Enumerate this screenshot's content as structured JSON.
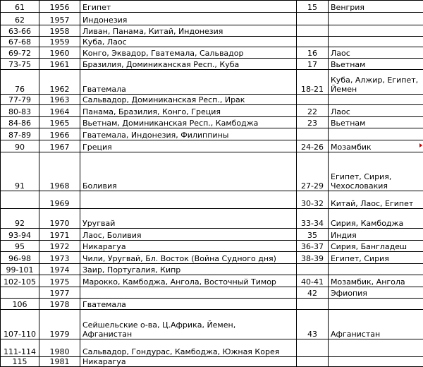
{
  "table": {
    "rows": [
      {
        "num": "61",
        "year": "1956",
        "countries": [
          "Египет"
        ],
        "num2": "15",
        "countries2": [
          "Венгрия"
        ]
      },
      {
        "num": "62",
        "year": "1957",
        "countries": [
          "Индонезия"
        ]
      },
      {
        "num": "63-66",
        "year": "1958",
        "countries": [
          "Ливан, Панама, Китай, Индонезия"
        ]
      },
      {
        "num": "67-68",
        "year": "1959",
        "countries": [
          "Куба, Лаос"
        ]
      },
      {
        "num": "69-72",
        "year": "1960",
        "countries": [
          "Конго, Эквадор, Гватемала, Сальвадор"
        ],
        "num2": "16",
        "countries2": [
          "Лаос"
        ]
      },
      {
        "num": "73-75",
        "year": "1961",
        "countries": [
          "Бразилия, Доминиканская Респ., Куба"
        ],
        "num2": "17",
        "countries2": [
          "Вьетнам"
        ]
      },
      {
        "num": "76",
        "year": "1962",
        "countries": [
          "Гватемала"
        ],
        "num2": "18-21",
        "countries2": [
          "Куба, Алжир, Египет,",
          "Йемен"
        ]
      },
      {
        "num": "77-79",
        "year": "1963",
        "countries": [
          "Сальвадор, Доминиканская Респ., Ирак"
        ]
      },
      {
        "num": "80-83",
        "year": "1964",
        "countries": [
          "Панама, Бразилия, Конго, Греция"
        ],
        "num2": "22",
        "countries2": [
          "Лаос"
        ]
      },
      {
        "num": "84-86",
        "year": "1965",
        "countries": [
          "Вьетнам, Доминиканская Респ., Камбоджа"
        ],
        "num2": "23",
        "countries2": [
          "Вьетнам"
        ]
      },
      {
        "num": "87-89",
        "year": "1966",
        "countries": [
          "Гватемала, Индонезия, Филиппины"
        ]
      },
      {
        "num": "90",
        "year": "1967",
        "countries": [
          "Греция"
        ],
        "num2": "24-26",
        "countries2": [
          "Мозамбик"
        ]
      },
      {
        "num": "91",
        "year": "1968",
        "countries": [
          "Боливия"
        ],
        "num2": "27-29",
        "countries2": [
          "Египет, Сирия,",
          "Чехословакия"
        ]
      },
      {
        "year": "1969",
        "num2": "30-32",
        "countries2": [
          "Китай, Лаос, Египет"
        ]
      },
      {
        "num": "92",
        "year": "1970",
        "countries": [
          "Уругвай"
        ],
        "num2": "33-34",
        "countries2": [
          "Сирия, Камбоджа"
        ]
      },
      {
        "num": "93-94",
        "year": "1971",
        "countries": [
          "Лаос, Боливия"
        ],
        "num2": "35",
        "countries2": [
          "Индия"
        ]
      },
      {
        "num": "95",
        "year": "1972",
        "countries": [
          "Никарагуа"
        ],
        "num2": "36-37",
        "countries2": [
          "Сирия, Бангладеш"
        ]
      },
      {
        "num": "96-98",
        "year": "1973",
        "countries": [
          "Чили, Уругвай, Бл. Восток (Война Судного дня)"
        ],
        "num2": "38-39",
        "countries2": [
          "Египет, Сирия"
        ]
      },
      {
        "num": "99-101",
        "year": "1974",
        "countries": [
          "Заир, Португалия, Кипр"
        ]
      },
      {
        "num": "102-105",
        "year": "1975",
        "countries": [
          "Марокко, Камбоджа, Ангола, Восточный Тимор"
        ],
        "num2": "40-41",
        "countries2": [
          "Мозамбик, Ангола"
        ]
      },
      {
        "year": "1977",
        "num2": "42",
        "countries2": [
          "Эфиопия"
        ]
      },
      {
        "num": "106",
        "year": "1978",
        "countries": [
          "Гватемала"
        ]
      },
      {
        "num": "107-110",
        "year": "1979",
        "countries": [
          "Сейшельские о-ва,  Ц.Африка, Йемен,",
          "Афганистан"
        ],
        "num2": "43",
        "countries2": [
          "Афганистан"
        ]
      },
      {
        "num": "111-114",
        "year": "1980",
        "countries": [
          "Сальвадор, Гондурас, Камбоджа, Южная Корея"
        ]
      },
      {
        "num": "115",
        "year": "1981",
        "countries": [
          "Никарагуа"
        ]
      }
    ]
  }
}
